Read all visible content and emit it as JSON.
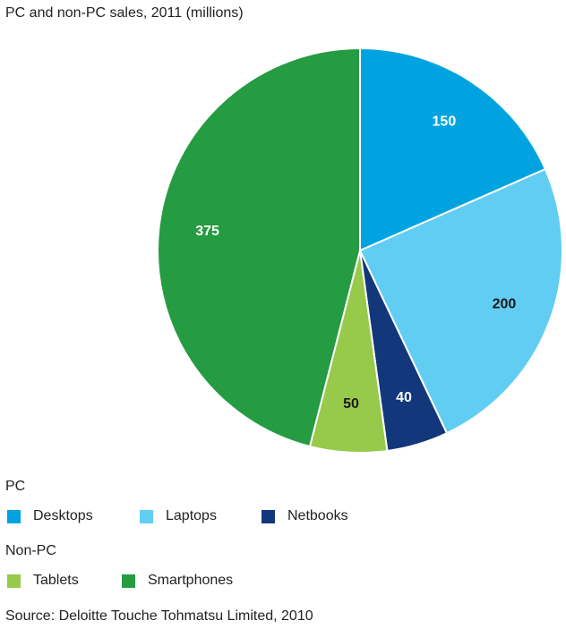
{
  "chart_data": {
    "type": "pie",
    "title": "PC and non-PC sales, 2011 (millions)",
    "slices": [
      {
        "name": "Desktops",
        "value": 150,
        "color": "#00a3e0",
        "label_color": "#ffffff"
      },
      {
        "name": "Laptops",
        "value": 200,
        "color": "#62cdf3",
        "label_color": "#1a1a1a"
      },
      {
        "name": "Netbooks",
        "value": 40,
        "color": "#12377a",
        "label_color": "#ffffff"
      },
      {
        "name": "Tablets",
        "value": 50,
        "color": "#97c94b",
        "label_color": "#1a1a1a"
      },
      {
        "name": "Smartphones",
        "value": 375,
        "color": "#259b42",
        "label_color": "#ffffff"
      }
    ],
    "legend": {
      "placement": "bottom",
      "groups": [
        {
          "label": "PC",
          "items": [
            {
              "name": "Desktops",
              "color": "#00a3e0"
            },
            {
              "name": "Laptops",
              "color": "#62cdf3"
            },
            {
              "name": "Netbooks",
              "color": "#12377a"
            }
          ]
        },
        {
          "label": "Non-PC",
          "items": [
            {
              "name": "Tablets",
              "color": "#97c94b"
            },
            {
              "name": "Smartphones",
              "color": "#259b42"
            }
          ]
        }
      ]
    },
    "source": "Source: Deloitte Touche Tohmatsu Limited, 2010"
  }
}
